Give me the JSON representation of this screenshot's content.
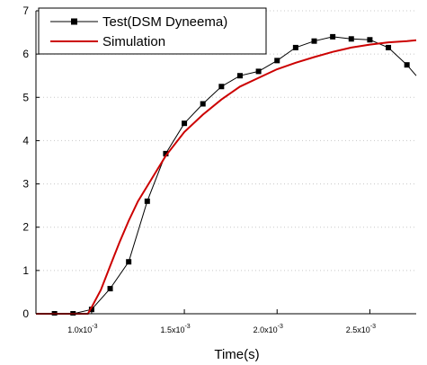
{
  "chart_data": {
    "type": "line",
    "xlabel": "Time(s)",
    "ylabel": "",
    "xlim": [
      0.0007,
      0.00275
    ],
    "ylim": [
      0,
      7
    ],
    "x_ticks": [
      {
        "value": 0.001,
        "mantissa": "1.0x10",
        "exp": "-3"
      },
      {
        "value": 0.0015,
        "mantissa": "1.5x10",
        "exp": "-3"
      },
      {
        "value": 0.002,
        "mantissa": "2.0x10",
        "exp": "-3"
      },
      {
        "value": 0.0025,
        "mantissa": "2.5x10",
        "exp": "-3"
      }
    ],
    "y_ticks": [
      "0",
      "1",
      "2",
      "3",
      "4",
      "5",
      "6",
      "7"
    ],
    "grid": "dotted horizontal",
    "legend_position": "top-left",
    "series": [
      {
        "name": "Test(DSM Dyneema)",
        "color": "#000000",
        "marker": "square",
        "x": [
          0.0007,
          0.0008,
          0.0009,
          0.001,
          0.0011,
          0.0012,
          0.0013,
          0.0014,
          0.0015,
          0.0016,
          0.0017,
          0.0018,
          0.0019,
          0.002,
          0.0021,
          0.0022,
          0.0023,
          0.0024,
          0.0025,
          0.0026,
          0.0027,
          0.00275
        ],
        "values": [
          0,
          0,
          0,
          0.1,
          0.58,
          1.2,
          2.6,
          3.7,
          4.4,
          4.85,
          5.25,
          5.5,
          5.6,
          5.85,
          6.15,
          6.3,
          6.4,
          6.35,
          6.33,
          6.15,
          5.75,
          5.5
        ]
      },
      {
        "name": "Simulation",
        "color": "#cc0000",
        "marker": "none",
        "x": [
          0.0007,
          0.00098,
          0.001,
          0.00105,
          0.0011,
          0.00115,
          0.0012,
          0.00125,
          0.0013,
          0.00135,
          0.0014,
          0.0015,
          0.0016,
          0.0017,
          0.0018,
          0.0019,
          0.002,
          0.0021,
          0.0022,
          0.0023,
          0.0024,
          0.0025,
          0.0026,
          0.0027,
          0.00275
        ],
        "values": [
          0,
          0,
          0.15,
          0.55,
          1.1,
          1.65,
          2.15,
          2.6,
          2.95,
          3.3,
          3.65,
          4.2,
          4.6,
          4.95,
          5.25,
          5.45,
          5.65,
          5.8,
          5.93,
          6.05,
          6.15,
          6.22,
          6.27,
          6.3,
          6.32
        ]
      }
    ]
  }
}
